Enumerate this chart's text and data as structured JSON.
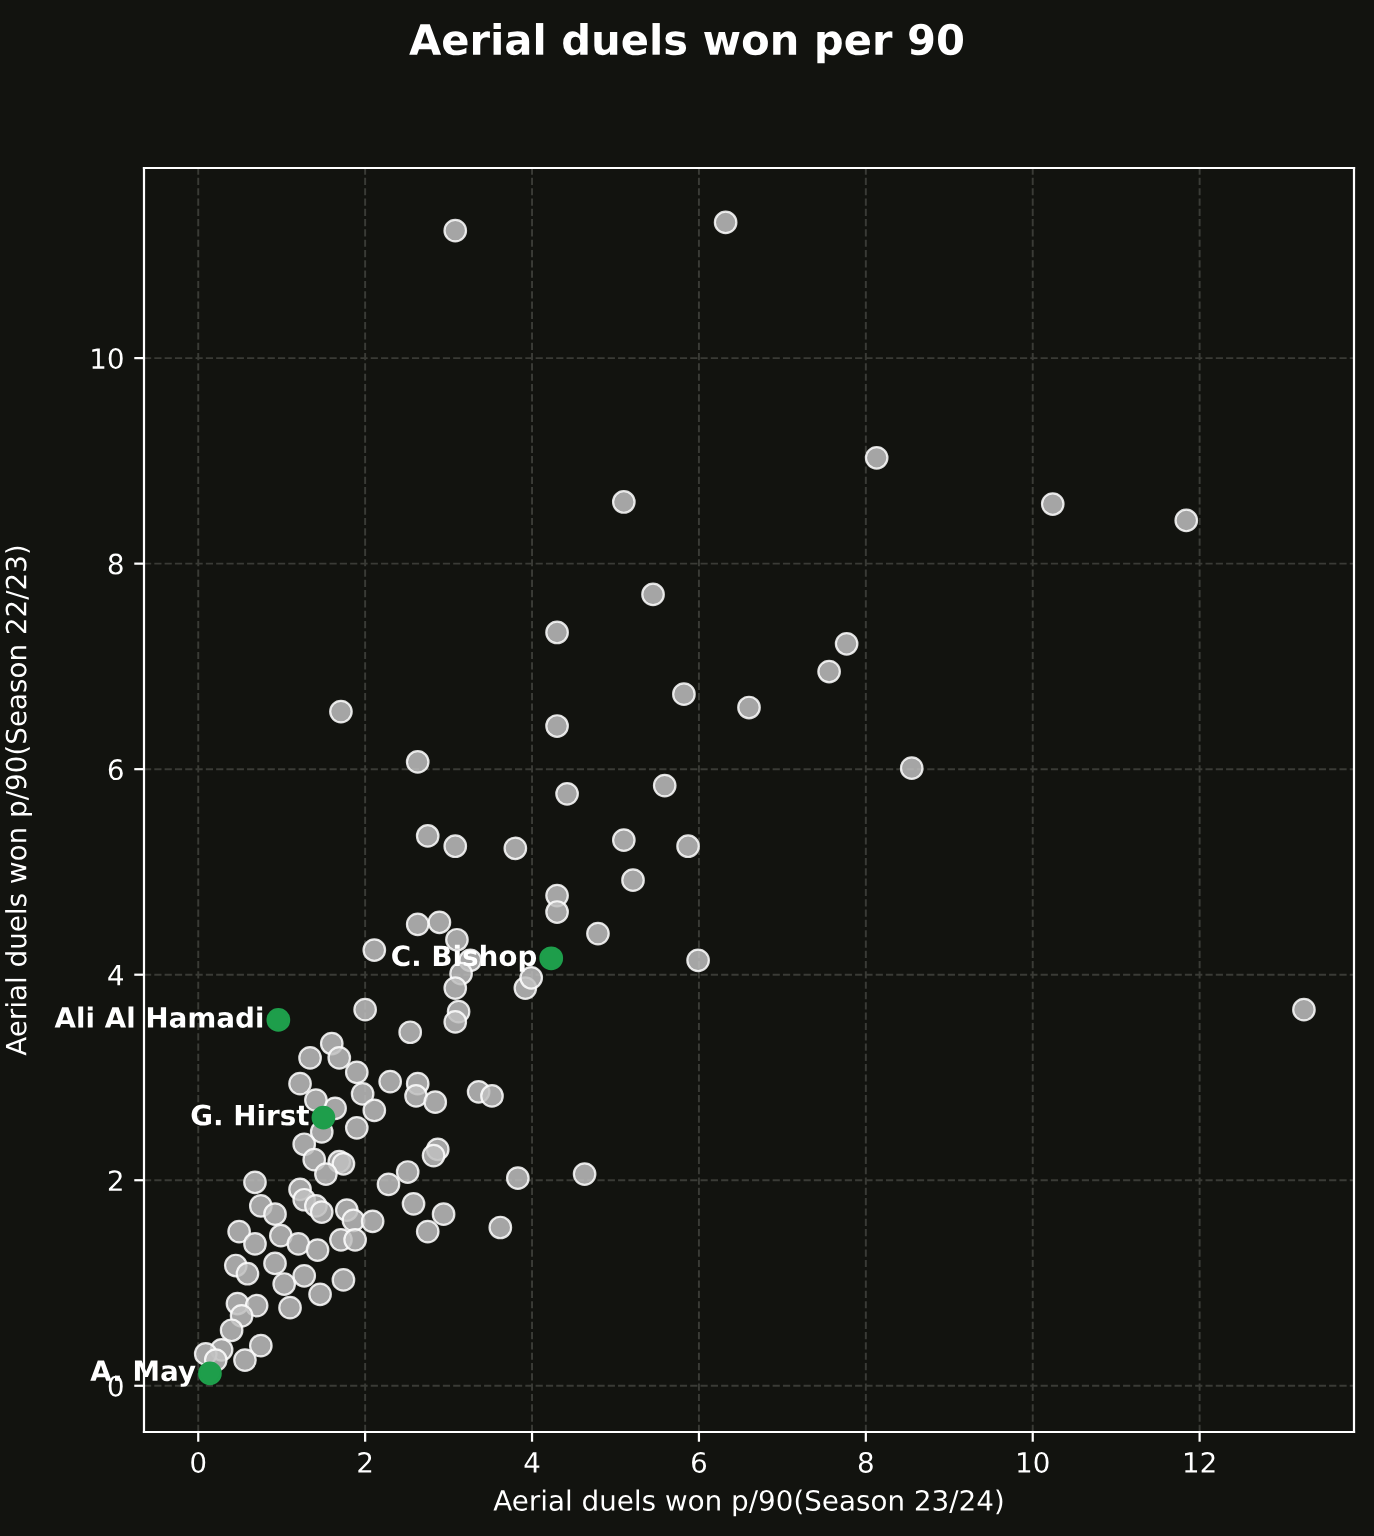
{
  "chart_data": {
    "type": "scatter",
    "title": "Aerial duels won per 90",
    "xlabel": "Aerial duels won p/90(Season 23/24)",
    "ylabel": "Aerial duels won p/90(Season 22/23)",
    "xlim": [
      -0.65,
      13.85
    ],
    "ylim": [
      -0.45,
      11.85
    ],
    "xticks": [
      0,
      2,
      4,
      6,
      8,
      10,
      12
    ],
    "yticks": [
      0,
      2,
      4,
      6,
      8,
      10
    ],
    "grid": true,
    "marker": "circle",
    "series": [
      {
        "color": "#c0c0c0",
        "x": [
          3.08,
          6.32,
          8.13,
          5.1,
          10.24,
          11.84,
          5.45,
          4.3,
          7.77,
          7.56,
          5.82,
          6.6,
          1.71,
          2.63,
          8.55,
          4.3,
          5.59,
          4.42,
          2.75,
          3.08,
          3.8,
          5.1,
          5.87,
          5.21,
          4.3,
          4.3,
          4.79,
          5.99,
          2.89,
          2.63,
          3.1,
          2.11,
          13.25,
          3.26,
          3.15,
          3.08,
          3.92,
          3.99,
          3.12,
          3.08,
          2.0,
          2.54,
          1.6,
          1.34,
          1.69,
          1.9,
          1.22,
          2.3,
          2.63,
          2.61,
          2.84,
          1.97,
          2.11,
          1.64,
          1.41,
          3.36,
          3.52,
          1.9,
          1.48,
          1.27,
          1.39,
          1.69,
          1.74,
          1.53,
          0.68,
          2.28,
          2.51,
          2.87,
          2.82,
          3.83,
          4.63,
          2.58,
          2.94,
          2.75,
          3.62,
          1.22,
          1.27,
          1.41,
          1.48,
          0.75,
          0.92,
          1.78,
          1.86,
          2.09,
          1.71,
          1.88,
          0.49,
          0.68,
          0.99,
          1.2,
          1.43,
          0.45,
          0.59,
          0.92,
          1.03,
          1.27,
          1.46,
          1.74,
          1.1,
          0.47,
          0.7,
          0.52,
          0.4,
          0.75,
          0.56,
          0.28,
          0.09,
          0.21
        ],
        "values": [
          11.24,
          11.32,
          9.03,
          8.6,
          8.58,
          8.42,
          7.7,
          7.33,
          7.22,
          6.95,
          6.73,
          6.6,
          6.56,
          6.07,
          6.01,
          6.42,
          5.84,
          5.76,
          5.35,
          5.25,
          5.23,
          5.31,
          5.25,
          4.92,
          4.77,
          4.61,
          4.4,
          4.14,
          4.51,
          4.49,
          4.34,
          4.24,
          3.66,
          4.14,
          4.01,
          3.87,
          3.87,
          3.97,
          3.64,
          3.54,
          3.66,
          3.44,
          3.33,
          3.19,
          3.19,
          3.05,
          2.94,
          2.96,
          2.94,
          2.82,
          2.76,
          2.84,
          2.68,
          2.7,
          2.78,
          2.86,
          2.82,
          2.51,
          2.47,
          2.35,
          2.2,
          2.18,
          2.16,
          2.06,
          1.98,
          1.96,
          2.08,
          2.3,
          2.24,
          2.02,
          2.06,
          1.77,
          1.67,
          1.5,
          1.54,
          1.91,
          1.81,
          1.75,
          1.69,
          1.75,
          1.67,
          1.71,
          1.61,
          1.6,
          1.42,
          1.42,
          1.5,
          1.38,
          1.46,
          1.38,
          1.32,
          1.17,
          1.09,
          1.19,
          0.99,
          1.07,
          0.89,
          1.03,
          0.76,
          0.8,
          0.78,
          0.68,
          0.54,
          0.39,
          0.25,
          0.35,
          0.31,
          0.25
        ]
      },
      {
        "color": "#1e9e4b",
        "x": [
          4.23,
          0.96,
          1.5,
          0.14
        ],
        "values": [
          4.16,
          3.56,
          2.61,
          0.12
        ]
      }
    ],
    "annotations": [
      {
        "text": "C. Bishop",
        "x": 4.23,
        "y": 4.16
      },
      {
        "text": "Ali Al Hamadi",
        "x": 0.96,
        "y": 3.56
      },
      {
        "text": "G. Hirst",
        "x": 1.5,
        "y": 2.61
      },
      {
        "text": "A. May",
        "x": 0.14,
        "y": 0.12
      }
    ]
  }
}
